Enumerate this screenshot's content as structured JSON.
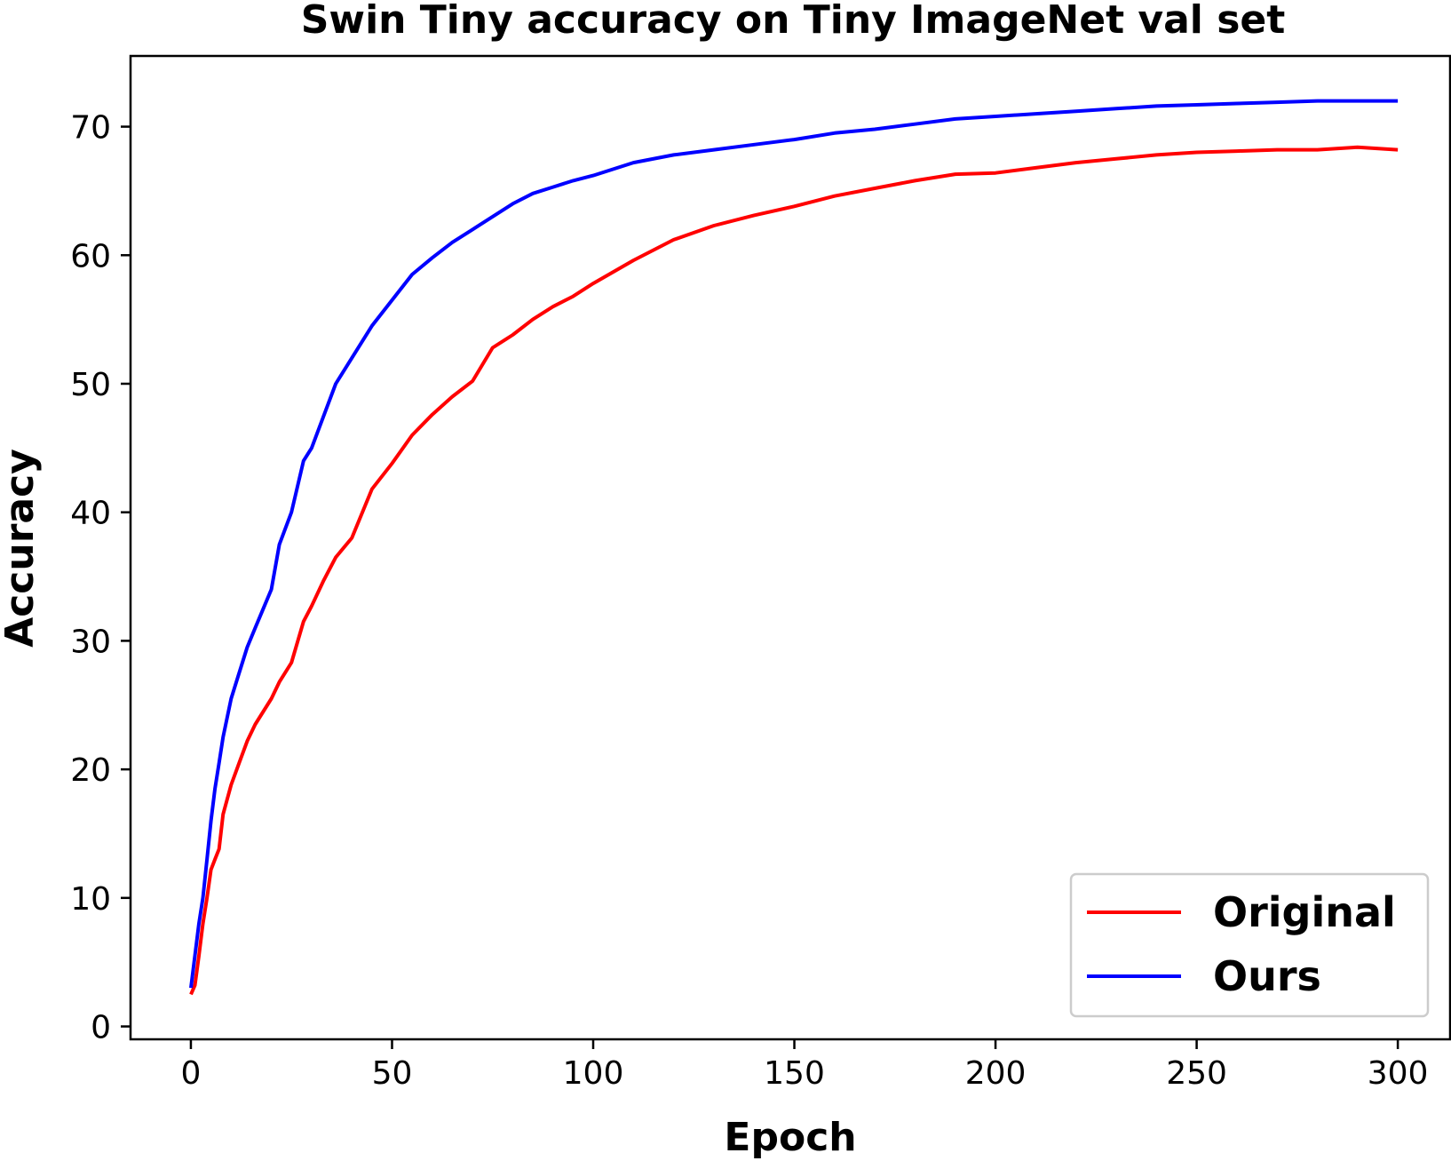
{
  "chart_data": {
    "type": "line",
    "title": "Swin Tiny accuracy on Tiny ImageNet val set",
    "xlabel": "Epoch",
    "ylabel": "Accuracy",
    "xlim": [
      -15,
      313
    ],
    "ylim": [
      -1,
      75.5
    ],
    "xticks": [
      0,
      50,
      100,
      150,
      200,
      250,
      300
    ],
    "yticks": [
      0,
      10,
      20,
      30,
      40,
      50,
      60,
      70
    ],
    "grid": false,
    "legend_position": "lower-right",
    "series": [
      {
        "name": "Original",
        "color": "#ff0000",
        "x": [
          0,
          1,
          2,
          3,
          4,
          5,
          6,
          7,
          8,
          10,
          12,
          14,
          16,
          18,
          20,
          22,
          25,
          28,
          30,
          33,
          36,
          40,
          45,
          50,
          55,
          60,
          65,
          70,
          75,
          80,
          85,
          90,
          95,
          100,
          110,
          120,
          130,
          140,
          150,
          160,
          170,
          180,
          190,
          200,
          210,
          220,
          230,
          240,
          250,
          260,
          270,
          280,
          290,
          300
        ],
        "y": [
          2.5,
          3.2,
          5.5,
          8.0,
          10.0,
          12.2,
          13.0,
          13.8,
          16.5,
          18.8,
          20.5,
          22.2,
          23.5,
          24.5,
          25.5,
          26.8,
          28.3,
          31.5,
          32.7,
          34.7,
          36.5,
          38.0,
          41.8,
          43.8,
          46.0,
          47.6,
          49.0,
          50.2,
          52.8,
          53.8,
          55.0,
          56.0,
          56.8,
          57.8,
          59.6,
          61.2,
          62.3,
          63.1,
          63.8,
          64.6,
          65.2,
          65.8,
          66.3,
          66.4,
          66.8,
          67.2,
          67.5,
          67.8,
          68.0,
          68.1,
          68.2,
          68.2,
          68.4,
          68.2
        ]
      },
      {
        "name": "Ours",
        "color": "#0000ff",
        "x": [
          0,
          1,
          2,
          3,
          4,
          5,
          6,
          7,
          8,
          10,
          12,
          14,
          16,
          18,
          20,
          22,
          25,
          28,
          30,
          33,
          36,
          40,
          45,
          50,
          55,
          60,
          65,
          70,
          75,
          80,
          85,
          90,
          95,
          100,
          110,
          120,
          130,
          140,
          150,
          160,
          170,
          180,
          190,
          200,
          210,
          220,
          230,
          240,
          250,
          260,
          270,
          280,
          290,
          300
        ],
        "y": [
          3.0,
          5.5,
          8.0,
          10.0,
          13.0,
          16.0,
          18.5,
          20.5,
          22.5,
          25.5,
          27.5,
          29.5,
          31.0,
          32.5,
          34.0,
          37.5,
          40.0,
          44.0,
          45.0,
          47.5,
          50.0,
          52.0,
          54.5,
          56.5,
          58.5,
          59.8,
          61.0,
          62.0,
          63.0,
          64.0,
          64.8,
          65.3,
          65.8,
          66.2,
          67.2,
          67.8,
          68.2,
          68.6,
          69.0,
          69.5,
          69.8,
          70.2,
          70.6,
          70.8,
          71.0,
          71.2,
          71.4,
          71.6,
          71.7,
          71.8,
          71.9,
          72.0,
          72.0,
          72.0
        ]
      }
    ]
  }
}
